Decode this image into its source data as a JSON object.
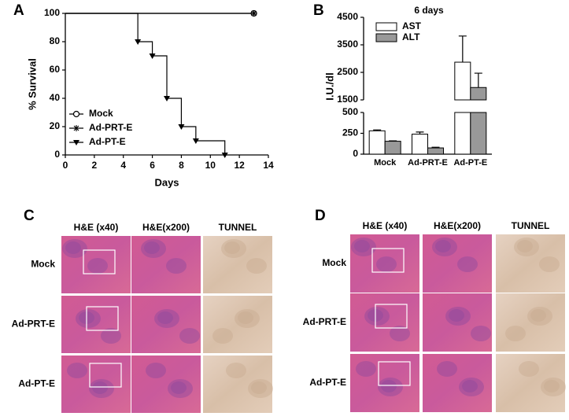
{
  "chart_data": [
    {
      "type": "line",
      "step": true,
      "panel_label": "A",
      "xlabel": "Days",
      "ylabel": "% Survival",
      "xlim": [
        0,
        14
      ],
      "xticks": [
        0,
        2,
        4,
        6,
        8,
        10,
        12,
        14
      ],
      "ylim": [
        0,
        100
      ],
      "yticks": [
        0,
        20,
        40,
        60,
        80,
        100
      ],
      "legend": "lower left",
      "series": [
        {
          "name": "Mock",
          "marker": "circle",
          "color": "#000000",
          "x": [
            0,
            13
          ],
          "values": [
            100,
            100
          ]
        },
        {
          "name": "Ad-PRT-E",
          "marker": "star",
          "color": "#000000",
          "x": [
            0,
            13
          ],
          "values": [
            100,
            100
          ]
        },
        {
          "name": "Ad-PT-E",
          "marker": "triangle-down",
          "color": "#000000",
          "x": [
            0,
            5,
            6,
            7,
            8,
            9,
            11
          ],
          "values": [
            100,
            80,
            70,
            40,
            20,
            10,
            0
          ]
        }
      ]
    },
    {
      "type": "bar",
      "panel_label": "B",
      "title": "6 days",
      "ylabel": "I.U./dl",
      "categories": [
        "Mock",
        "Ad-PRT-E",
        "Ad-PT-E"
      ],
      "ylim": [
        0,
        4500
      ],
      "ybreak": [
        500,
        1500
      ],
      "yticks": [
        0,
        250,
        500,
        1500,
        2500,
        3500,
        4500
      ],
      "legend": "upper left",
      "series": [
        {
          "name": "AST",
          "color": "#ffffff",
          "values": [
            280,
            240,
            2870
          ],
          "errors": [
            10,
            25,
            950
          ]
        },
        {
          "name": "ALT",
          "color": "#999999",
          "values": [
            155,
            75,
            1950
          ],
          "errors": [
            5,
            8,
            520
          ]
        }
      ]
    }
  ],
  "image_panels": [
    {
      "label": "C",
      "columns": [
        "H&E (x40)",
        "H&E(x200)",
        "TUNNEL"
      ],
      "rows": [
        "Mock",
        "Ad-PRT-E",
        "Ad-PT-E"
      ]
    },
    {
      "label": "D",
      "columns": [
        "H&E (x40)",
        "H&E(x200)",
        "TUNNEL"
      ],
      "rows": [
        "Mock",
        "Ad-PRT-E",
        "Ad-PT-E"
      ]
    }
  ]
}
